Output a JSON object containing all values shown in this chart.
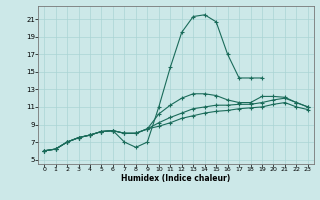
{
  "xlabel": "Humidex (Indice chaleur)",
  "bg_color": "#cce8e8",
  "line_color": "#1a6b5a",
  "grid_color": "#aad4d4",
  "xlim": [
    -0.5,
    23.5
  ],
  "ylim": [
    4.5,
    22.5
  ],
  "xticks": [
    0,
    1,
    2,
    3,
    4,
    5,
    6,
    7,
    8,
    9,
    10,
    11,
    12,
    13,
    14,
    15,
    16,
    17,
    18,
    19,
    20,
    21,
    22,
    23
  ],
  "yticks": [
    5,
    7,
    9,
    11,
    13,
    15,
    17,
    19,
    21
  ],
  "line1_x": [
    0,
    1,
    2,
    3,
    4,
    5,
    6,
    7,
    8,
    9,
    10,
    11,
    12,
    13,
    14,
    15,
    16,
    17,
    18,
    19,
    20,
    21,
    22,
    23
  ],
  "line1_y": [
    6.0,
    6.2,
    7.0,
    7.5,
    7.8,
    8.2,
    8.3,
    7.0,
    6.4,
    7.0,
    11.0,
    15.5,
    19.5,
    21.3,
    21.5,
    20.7,
    17.0,
    14.3,
    14.3,
    14.3,
    null,
    null,
    null,
    null
  ],
  "line2_x": [
    0,
    1,
    2,
    3,
    4,
    5,
    6,
    7,
    8,
    9,
    10,
    11,
    12,
    13,
    14,
    15,
    16,
    17,
    18,
    19,
    20,
    21,
    22,
    23
  ],
  "line2_y": [
    6.0,
    6.2,
    7.0,
    7.5,
    7.8,
    8.2,
    8.3,
    8.0,
    8.0,
    8.5,
    10.2,
    11.2,
    12.0,
    12.5,
    12.5,
    12.3,
    11.8,
    11.5,
    11.5,
    12.2,
    12.2,
    12.1,
    11.5,
    11.0
  ],
  "line3_x": [
    0,
    1,
    2,
    3,
    4,
    5,
    6,
    7,
    8,
    9,
    10,
    11,
    12,
    13,
    14,
    15,
    16,
    17,
    18,
    19,
    20,
    21,
    22,
    23
  ],
  "line3_y": [
    6.0,
    6.2,
    7.0,
    7.5,
    7.8,
    8.2,
    8.3,
    8.0,
    8.0,
    8.5,
    9.2,
    9.8,
    10.3,
    10.8,
    11.0,
    11.2,
    11.2,
    11.3,
    11.3,
    11.5,
    11.8,
    12.0,
    11.5,
    11.0
  ],
  "line4_x": [
    0,
    1,
    2,
    3,
    4,
    5,
    6,
    7,
    8,
    9,
    10,
    11,
    12,
    13,
    14,
    15,
    16,
    17,
    18,
    19,
    20,
    21,
    22,
    23
  ],
  "line4_y": [
    6.0,
    6.2,
    7.0,
    7.5,
    7.8,
    8.2,
    8.3,
    8.0,
    8.0,
    8.5,
    8.8,
    9.2,
    9.7,
    10.0,
    10.3,
    10.5,
    10.6,
    10.8,
    10.9,
    11.0,
    11.3,
    11.5,
    11.0,
    10.7
  ]
}
